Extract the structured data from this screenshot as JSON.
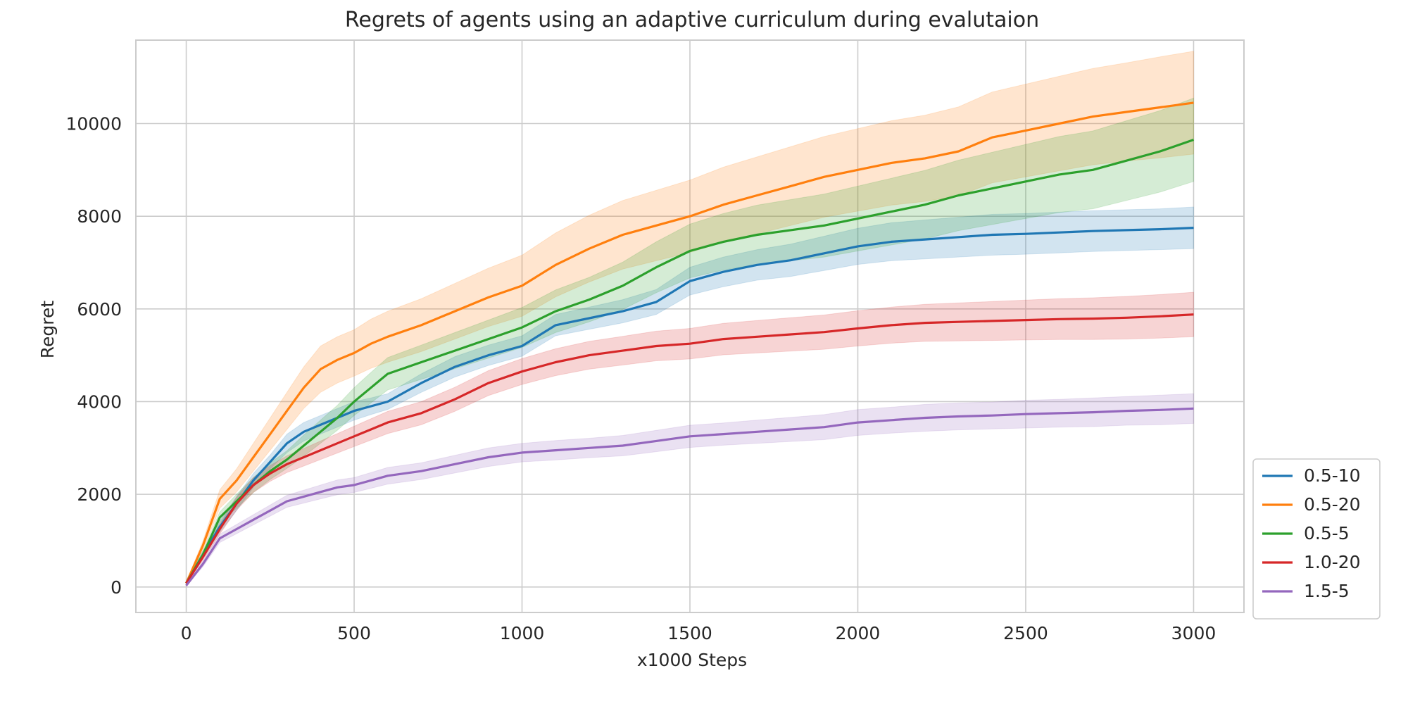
{
  "chart_data": {
    "type": "line",
    "title": "Regrets of agents using an adaptive curriculum during evalutaion",
    "xlabel": "x1000 Steps",
    "ylabel": "Regret",
    "xlim": [
      -150,
      3150
    ],
    "ylim": [
      -550,
      11800
    ],
    "xticks": [
      0,
      500,
      1000,
      1500,
      2000,
      2500,
      3000
    ],
    "xtick_labels": [
      "0",
      "500",
      "1000",
      "1500",
      "2000",
      "2500",
      "3000"
    ],
    "yticks": [
      0,
      2000,
      4000,
      6000,
      8000,
      10000
    ],
    "ytick_labels": [
      "0",
      "2000",
      "4000",
      "6000",
      "8000",
      "10000"
    ],
    "grid": true,
    "legend_position": "outside-lower-right",
    "x": [
      0,
      50,
      100,
      150,
      200,
      250,
      300,
      350,
      400,
      450,
      500,
      550,
      600,
      700,
      800,
      900,
      1000,
      1100,
      1200,
      1300,
      1400,
      1500,
      1600,
      1700,
      1800,
      1900,
      2000,
      2100,
      2200,
      2300,
      2400,
      2500,
      2600,
      2700,
      2800,
      2900,
      3000
    ],
    "series": [
      {
        "name": "0.5-10",
        "color": "#1f77b4",
        "values": [
          80,
          700,
          1300,
          1800,
          2300,
          2700,
          3100,
          3350,
          3500,
          3650,
          3800,
          3900,
          4000,
          4400,
          4750,
          5000,
          5200,
          5650,
          5800,
          5950,
          6150,
          6600,
          6800,
          6950,
          7050,
          7200,
          7350,
          7450,
          7500,
          7550,
          7600,
          7620,
          7650,
          7680,
          7700,
          7720,
          7750
        ],
        "lower": [
          60,
          620,
          1180,
          1650,
          2150,
          2550,
          2900,
          3150,
          3300,
          3450,
          3600,
          3720,
          3830,
          4200,
          4530,
          4780,
          4980,
          5420,
          5560,
          5700,
          5880,
          6300,
          6480,
          6620,
          6700,
          6830,
          6960,
          7040,
          7080,
          7120,
          7160,
          7180,
          7210,
          7240,
          7260,
          7280,
          7300
        ],
        "upper": [
          100,
          780,
          1420,
          1950,
          2450,
          2850,
          3300,
          3550,
          3700,
          3850,
          4000,
          4080,
          4170,
          4600,
          4970,
          5220,
          5420,
          5880,
          6040,
          6200,
          6420,
          6900,
          7120,
          7280,
          7400,
          7570,
          7740,
          7860,
          7920,
          7980,
          8040,
          8060,
          8090,
          8120,
          8140,
          8160,
          8200
        ]
      },
      {
        "name": "0.5-20",
        "color": "#ff7f0e",
        "values": [
          80,
          900,
          1900,
          2300,
          2800,
          3300,
          3800,
          4300,
          4700,
          4900,
          5050,
          5250,
          5400,
          5650,
          5950,
          6250,
          6500,
          6950,
          7300,
          7600,
          7800,
          8000,
          8250,
          8450,
          8650,
          8850,
          9000,
          9150,
          9250,
          9400,
          9700,
          9850,
          10000,
          10150,
          10250,
          10350,
          10450
        ],
        "lower": [
          60,
          800,
          1700,
          2050,
          2500,
          2950,
          3400,
          3850,
          4200,
          4400,
          4550,
          4720,
          4850,
          5080,
          5350,
          5620,
          5840,
          6260,
          6580,
          6860,
          7040,
          7220,
          7440,
          7620,
          7800,
          7980,
          8110,
          8240,
          8320,
          8440,
          8720,
          8850,
          8980,
          9110,
          9190,
          9260,
          9340
        ],
        "upper": [
          100,
          1000,
          2100,
          2550,
          3100,
          3650,
          4200,
          4750,
          5200,
          5400,
          5550,
          5780,
          5950,
          6220,
          6550,
          6880,
          7160,
          7640,
          8020,
          8340,
          8560,
          8780,
          9060,
          9280,
          9500,
          9720,
          9890,
          10060,
          10180,
          10360,
          10680,
          10850,
          11020,
          11190,
          11310,
          11440,
          11560
        ]
      },
      {
        "name": "0.5-5",
        "color": "#2ca02c",
        "values": [
          80,
          700,
          1500,
          1850,
          2200,
          2500,
          2750,
          3050,
          3350,
          3650,
          4000,
          4300,
          4600,
          4850,
          5100,
          5350,
          5600,
          5950,
          6200,
          6500,
          6900,
          7250,
          7450,
          7600,
          7700,
          7800,
          7950,
          8100,
          8250,
          8450,
          8600,
          8750,
          8900,
          9000,
          9200,
          9400,
          9650
        ],
        "lower": [
          60,
          620,
          1380,
          1700,
          2040,
          2320,
          2560,
          2820,
          3100,
          3380,
          3700,
          3970,
          4250,
          4480,
          4710,
          4940,
          5170,
          5490,
          5720,
          5990,
          6350,
          6670,
          6840,
          6960,
          7040,
          7120,
          7250,
          7380,
          7510,
          7690,
          7820,
          7950,
          8080,
          8160,
          8340,
          8520,
          8750
        ],
        "upper": [
          100,
          780,
          1620,
          2000,
          2360,
          2680,
          2940,
          3280,
          3600,
          3920,
          4300,
          4630,
          4950,
          5220,
          5490,
          5760,
          6030,
          6410,
          6680,
          7010,
          7450,
          7830,
          8060,
          8240,
          8360,
          8480,
          8650,
          8820,
          8990,
          9210,
          9380,
          9550,
          9720,
          9840,
          10060,
          10280,
          10550
        ]
      },
      {
        "name": "1.0-20",
        "color": "#d62728",
        "values": [
          80,
          650,
          1250,
          1800,
          2200,
          2450,
          2650,
          2800,
          2950,
          3100,
          3250,
          3400,
          3550,
          3750,
          4050,
          4400,
          4650,
          4850,
          5000,
          5100,
          5200,
          5250,
          5350,
          5400,
          5450,
          5500,
          5580,
          5650,
          5700,
          5720,
          5740,
          5760,
          5780,
          5790,
          5810,
          5840,
          5880
        ],
        "lower": [
          60,
          580,
          1140,
          1660,
          2040,
          2280,
          2470,
          2610,
          2750,
          2890,
          3030,
          3170,
          3310,
          3500,
          3790,
          4130,
          4370,
          4560,
          4700,
          4790,
          4880,
          4920,
          5010,
          5050,
          5090,
          5130,
          5200,
          5260,
          5300,
          5310,
          5320,
          5330,
          5340,
          5340,
          5350,
          5370,
          5400
        ],
        "upper": [
          100,
          720,
          1360,
          1940,
          2360,
          2620,
          2830,
          2990,
          3150,
          3310,
          3470,
          3630,
          3790,
          4000,
          4310,
          4670,
          4930,
          5140,
          5300,
          5410,
          5520,
          5580,
          5690,
          5750,
          5810,
          5870,
          5960,
          6040,
          6100,
          6130,
          6160,
          6190,
          6220,
          6240,
          6270,
          6310,
          6360
        ]
      },
      {
        "name": "1.5-5",
        "color": "#9467bd",
        "values": [
          30,
          500,
          1050,
          1250,
          1450,
          1650,
          1850,
          1950,
          2050,
          2150,
          2200,
          2300,
          2400,
          2500,
          2650,
          2800,
          2900,
          2950,
          3000,
          3050,
          3150,
          3250,
          3300,
          3350,
          3400,
          3450,
          3550,
          3600,
          3650,
          3680,
          3700,
          3730,
          3750,
          3770,
          3800,
          3820,
          3850
        ],
        "lower": [
          20,
          440,
          960,
          1150,
          1340,
          1530,
          1720,
          1810,
          1900,
          1990,
          2040,
          2130,
          2220,
          2320,
          2460,
          2600,
          2700,
          2740,
          2790,
          2830,
          2920,
          3010,
          3060,
          3100,
          3140,
          3180,
          3270,
          3320,
          3360,
          3390,
          3410,
          3430,
          3450,
          3460,
          3490,
          3500,
          3530
        ],
        "upper": [
          40,
          560,
          1140,
          1350,
          1560,
          1770,
          1980,
          2090,
          2200,
          2310,
          2360,
          2470,
          2580,
          2680,
          2840,
          3000,
          3100,
          3160,
          3210,
          3270,
          3380,
          3490,
          3540,
          3600,
          3660,
          3720,
          3830,
          3880,
          3940,
          3970,
          3990,
          4030,
          4050,
          4080,
          4110,
          4140,
          4170
        ]
      }
    ]
  }
}
